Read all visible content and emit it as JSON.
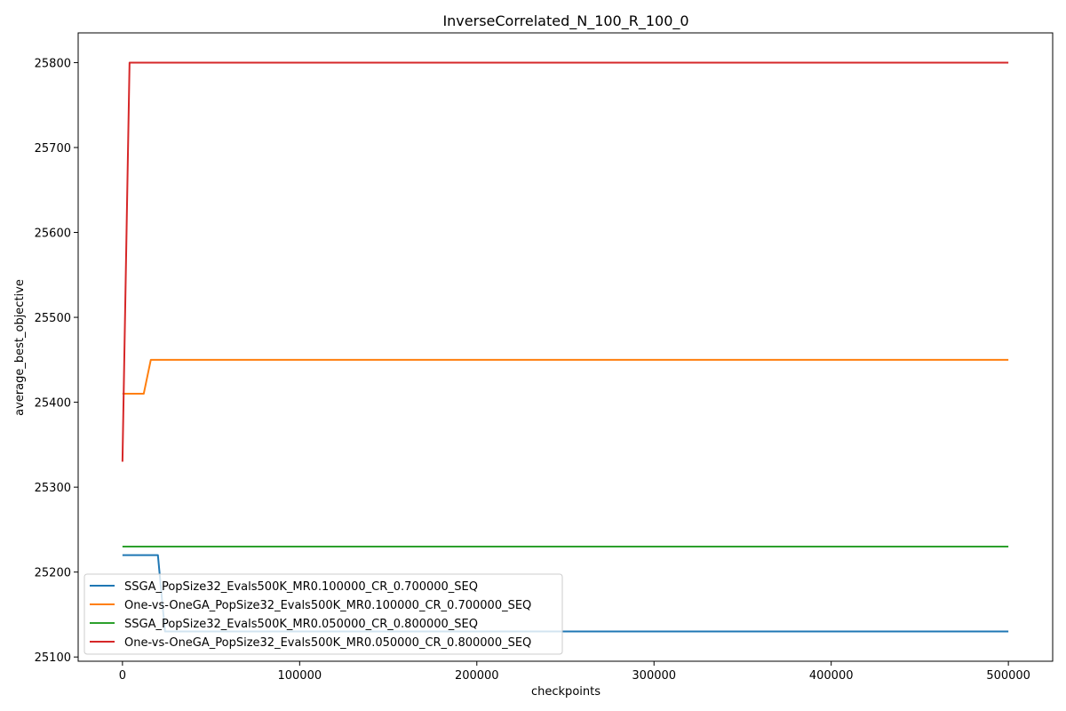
{
  "chart_data": {
    "type": "line",
    "title": "InverseCorrelated_N_100_R_100_0",
    "xlabel": "checkpoints",
    "ylabel": "average_best_objective",
    "xlim": [
      -25000,
      525000
    ],
    "ylim": [
      25095,
      25835
    ],
    "xticks": [
      0,
      100000,
      200000,
      300000,
      400000,
      500000
    ],
    "yticks": [
      25100,
      25200,
      25300,
      25400,
      25500,
      25600,
      25700,
      25800
    ],
    "grid": false,
    "legend_position": "lower-left",
    "series": [
      {
        "name": "SSGA_PopSize32_Evals500K_MR0.100000_CR_0.700000_SEQ",
        "color": "#1f77b4",
        "points": [
          [
            0,
            25220
          ],
          [
            20000,
            25220
          ],
          [
            24000,
            25130
          ],
          [
            500000,
            25130
          ]
        ]
      },
      {
        "name": "One-vs-OneGA_PopSize32_Evals500K_MR0.100000_CR_0.700000_SEQ",
        "color": "#ff7f0e",
        "points": [
          [
            0,
            25410
          ],
          [
            12000,
            25410
          ],
          [
            16000,
            25450
          ],
          [
            500000,
            25450
          ]
        ]
      },
      {
        "name": "SSGA_PopSize32_Evals500K_MR0.050000_CR_0.800000_SEQ",
        "color": "#2ca02c",
        "points": [
          [
            0,
            25230
          ],
          [
            500000,
            25230
          ]
        ]
      },
      {
        "name": "One-vs-OneGA_PopSize32_Evals500K_MR0.050000_CR_0.800000_SEQ",
        "color": "#d62728",
        "points": [
          [
            0,
            25330
          ],
          [
            4000,
            25800
          ],
          [
            500000,
            25800
          ]
        ]
      }
    ]
  }
}
